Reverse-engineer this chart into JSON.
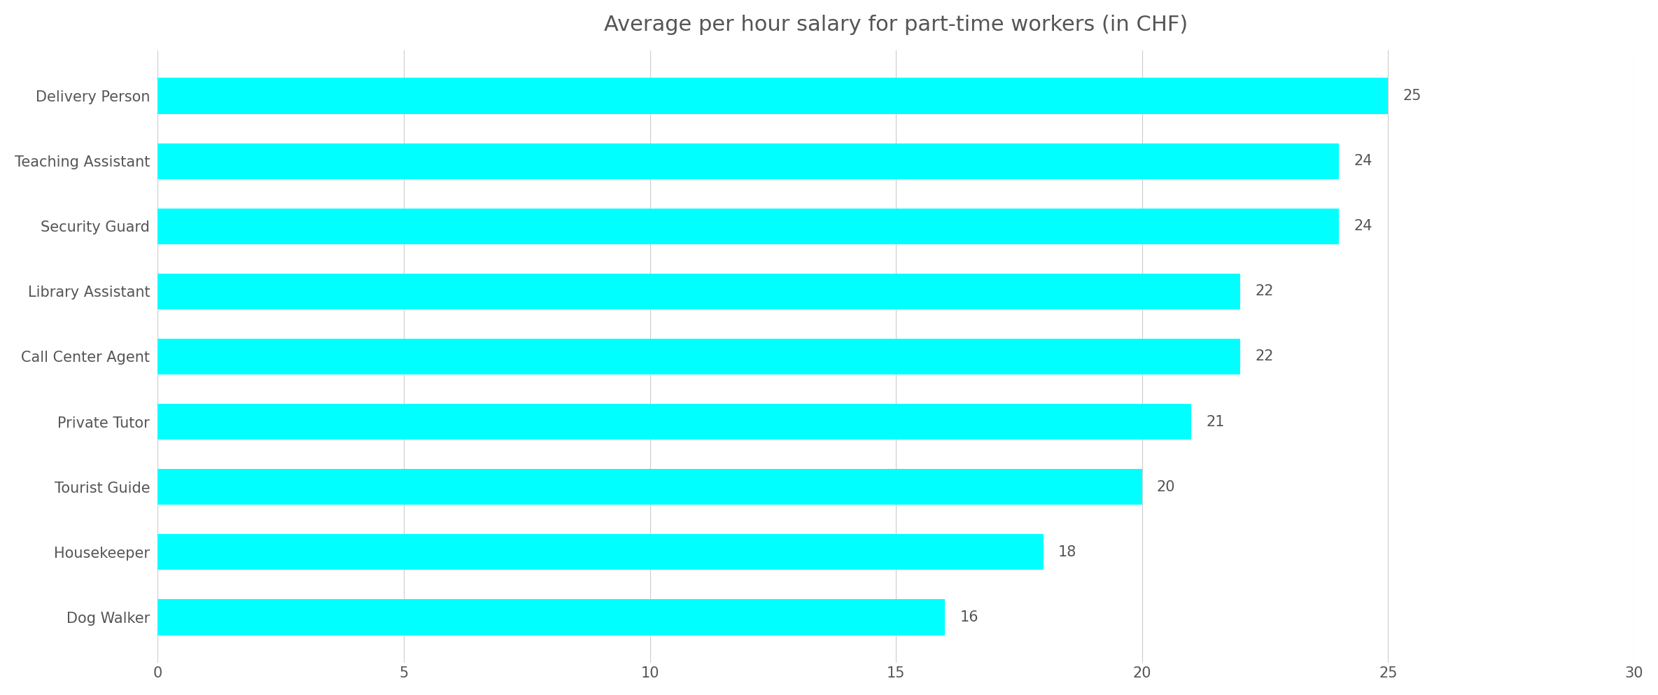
{
  "title": "Average per hour salary for part-time workers (in CHF)",
  "categories": [
    "Dog Walker",
    "Housekeeper",
    "Tourist Guide",
    "Private Tutor",
    "Call Center Agent",
    "Library Assistant",
    "Security Guard",
    "Teaching Assistant",
    "Delivery Person"
  ],
  "values": [
    16,
    18,
    20,
    21,
    22,
    22,
    24,
    24,
    25
  ],
  "bar_color": "#00FFFF",
  "xlim": [
    0,
    30
  ],
  "xticks": [
    0,
    5,
    10,
    15,
    20,
    25,
    30
  ],
  "background_color": "#ffffff",
  "title_fontsize": 22,
  "label_fontsize": 15,
  "tick_fontsize": 15,
  "value_fontsize": 15,
  "text_color": "#555555",
  "grid_color": "#cccccc"
}
